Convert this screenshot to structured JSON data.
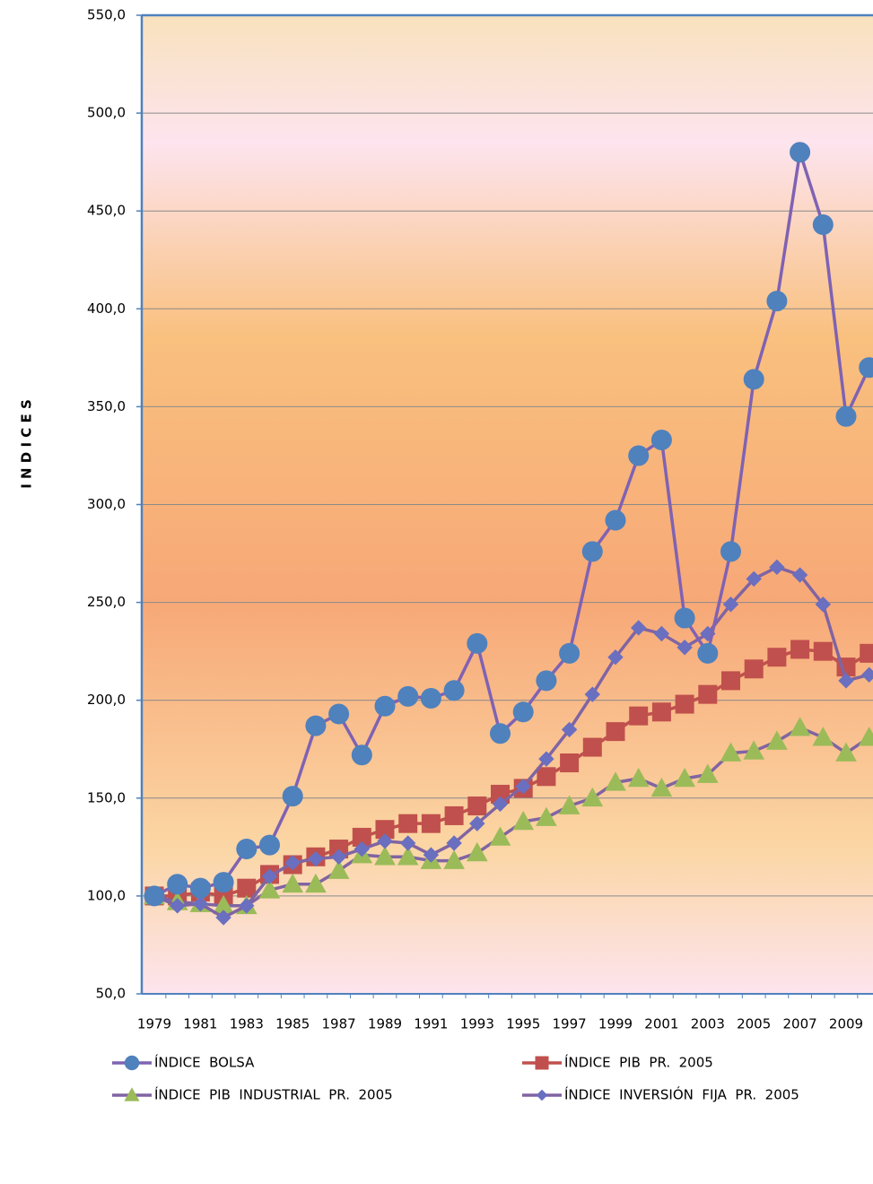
{
  "chart_data": {
    "type": "line",
    "y_label": "I N D I C E S",
    "categories": [
      "1979",
      null,
      "1981",
      null,
      "1983",
      null,
      "1985",
      null,
      "1987",
      null,
      "1989",
      null,
      "1991",
      null,
      "1993",
      null,
      "1995",
      null,
      "1997",
      null,
      "1999",
      null,
      "2001",
      null,
      "2003",
      null,
      "2005",
      null,
      "2007",
      null,
      "2009",
      null
    ],
    "series": [
      {
        "name": "ÍNDICE  BOLSA",
        "color": "#4f81bd",
        "line_color": "#7f62b3",
        "marker": "circle",
        "values": [
          100,
          106,
          104,
          107,
          124,
          126,
          151,
          187,
          193,
          172,
          197,
          202,
          201,
          205,
          229,
          183,
          194,
          210,
          224,
          276,
          292,
          325,
          333,
          242,
          224,
          276,
          364,
          404,
          480,
          443,
          345,
          370
        ]
      },
      {
        "name": "ÍNDICE  PIB  PR.  2005",
        "color": "#c0504d",
        "line_color": "#c0504d",
        "marker": "square",
        "values": [
          100,
          100,
          102,
          100,
          104,
          111,
          116,
          120,
          124,
          130,
          134,
          137,
          137,
          141,
          146,
          152,
          155,
          161,
          168,
          176,
          184,
          192,
          194,
          198,
          203,
          210,
          216,
          222,
          226,
          225,
          217,
          224
        ]
      },
      {
        "name": "ÍNDICE  PIB  INDUSTRIAL  PR.  2005",
        "color": "#9bbb59",
        "line_color": "#8064a2",
        "marker": "triangle",
        "values": [
          100,
          97,
          96,
          95,
          95,
          103,
          106,
          106,
          113,
          121,
          120,
          120,
          118,
          118,
          122,
          130,
          138,
          140,
          146,
          150,
          158,
          160,
          155,
          160,
          162,
          173,
          174,
          179,
          186,
          181,
          173,
          181
        ]
      },
      {
        "name": "ÍNDICE  INVERSIÓN  FIJA  PR.  2005",
        "color": "#6a6fc0",
        "line_color": "#8064a2",
        "marker": "diamond",
        "values": [
          100,
          95,
          96,
          89,
          95,
          110,
          117,
          119,
          120,
          124,
          128,
          127,
          121,
          127,
          137,
          147,
          156,
          170,
          185,
          203,
          222,
          237,
          234,
          227,
          234,
          249,
          262,
          268,
          264,
          249,
          210,
          213
        ]
      }
    ],
    "ylim": [
      50,
      550
    ],
    "yticks": [
      {
        "value": 50,
        "label": "50,0"
      },
      {
        "value": 100,
        "label": "100,0"
      },
      {
        "value": 150,
        "label": "150,0"
      },
      {
        "value": 200,
        "label": "200,0"
      },
      {
        "value": 250,
        "label": "250,0"
      },
      {
        "value": 300,
        "label": "300,0"
      },
      {
        "value": 350,
        "label": "350,0"
      },
      {
        "value": 400,
        "label": "400,0"
      },
      {
        "value": 450,
        "label": "450,0"
      },
      {
        "value": 500,
        "label": "500,0"
      },
      {
        "value": 550,
        "label": "550,0"
      }
    ],
    "grid": true
  }
}
